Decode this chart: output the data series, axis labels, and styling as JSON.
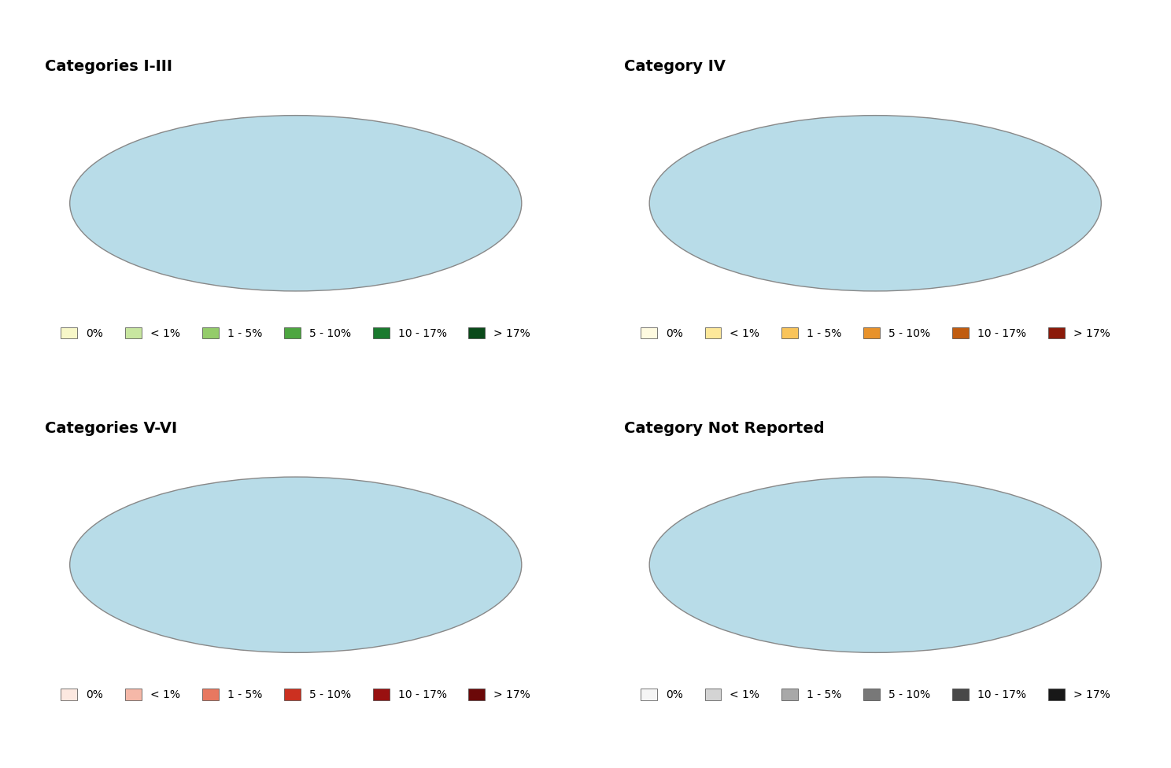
{
  "panels": [
    {
      "title": "Categories I-III",
      "colormap_colors": [
        "#f7f7c8",
        "#c8e6a0",
        "#94cc6a",
        "#4da640",
        "#1a7a2e",
        "#0a4a1a"
      ],
      "labels": [
        "0%",
        "< 1%",
        "1 - 5%",
        "5 - 10%",
        "10 - 17%",
        "> 17%"
      ]
    },
    {
      "title": "Category IV",
      "colormap_colors": [
        "#fefae0",
        "#fde89a",
        "#f9c45a",
        "#e8922a",
        "#c05c10",
        "#8b1a0a"
      ],
      "labels": [
        "0%",
        "< 1%",
        "1 - 5%",
        "5 - 10%",
        "10 - 17%",
        "> 17%"
      ]
    },
    {
      "title": "Categories V-VI",
      "colormap_colors": [
        "#fce8e0",
        "#f5b8a8",
        "#e87860",
        "#cc3020",
        "#991010",
        "#6b0808"
      ],
      "labels": [
        "0%",
        "< 1%",
        "1 - 5%",
        "5 - 10%",
        "10 - 17%",
        "> 17%"
      ]
    },
    {
      "title": "Category Not Reported",
      "colormap_colors": [
        "#f5f5f5",
        "#d4d4d4",
        "#a8a8a8",
        "#787878",
        "#484848",
        "#181818"
      ],
      "labels": [
        "0%",
        "< 1%",
        "1 - 5%",
        "5 - 10%",
        "10 - 17%",
        "> 17%"
      ]
    }
  ],
  "ocean_color": "#b8dce8",
  "antarctica_color": "#f0f0d8",
  "background_color": "#ffffff",
  "title_fontsize": 14,
  "legend_fontsize": 10
}
